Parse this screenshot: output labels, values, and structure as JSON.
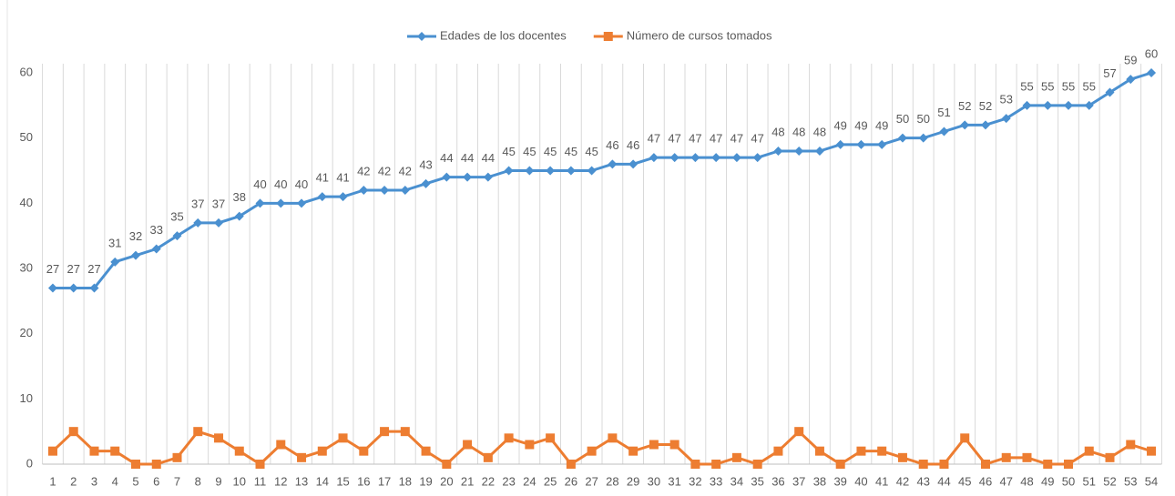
{
  "chart_data": {
    "type": "line",
    "categories": [
      1,
      2,
      3,
      4,
      5,
      6,
      7,
      8,
      9,
      10,
      11,
      12,
      13,
      14,
      15,
      16,
      17,
      18,
      19,
      20,
      21,
      22,
      23,
      24,
      25,
      26,
      27,
      28,
      29,
      30,
      31,
      32,
      33,
      34,
      35,
      36,
      37,
      38,
      39,
      40,
      41,
      42,
      43,
      44,
      45,
      46,
      47,
      48,
      49,
      50,
      51,
      52,
      53,
      54
    ],
    "series": [
      {
        "name": "Edades de los docentes",
        "color": "#4a90d0",
        "marker": "diamond",
        "data_labels": true,
        "values": [
          27,
          27,
          27,
          31,
          32,
          33,
          35,
          37,
          37,
          38,
          40,
          40,
          40,
          41,
          41,
          42,
          42,
          42,
          43,
          44,
          44,
          44,
          45,
          45,
          45,
          45,
          45,
          46,
          46,
          47,
          47,
          47,
          47,
          47,
          47,
          48,
          48,
          48,
          49,
          49,
          49,
          50,
          50,
          51,
          52,
          52,
          53,
          55,
          55,
          55,
          55,
          57,
          59,
          60
        ]
      },
      {
        "name": "Número de cursos tomados",
        "color": "#ed7d31",
        "marker": "square",
        "data_labels": false,
        "values": [
          2,
          5,
          2,
          2,
          0,
          0,
          1,
          5,
          4,
          2,
          0,
          3,
          1,
          2,
          4,
          2,
          5,
          5,
          2,
          0,
          3,
          1,
          4,
          3,
          4,
          0,
          2,
          4,
          2,
          3,
          3,
          0,
          0,
          1,
          0,
          2,
          5,
          2,
          0,
          2,
          2,
          1,
          0,
          0,
          4,
          0,
          1,
          1,
          0,
          0,
          2,
          1,
          3,
          2
        ]
      }
    ],
    "ylim": [
      0,
      60
    ],
    "yticks": [
      0,
      10,
      20,
      30,
      40,
      50,
      60
    ],
    "grid": "vertical",
    "legend": "top"
  }
}
